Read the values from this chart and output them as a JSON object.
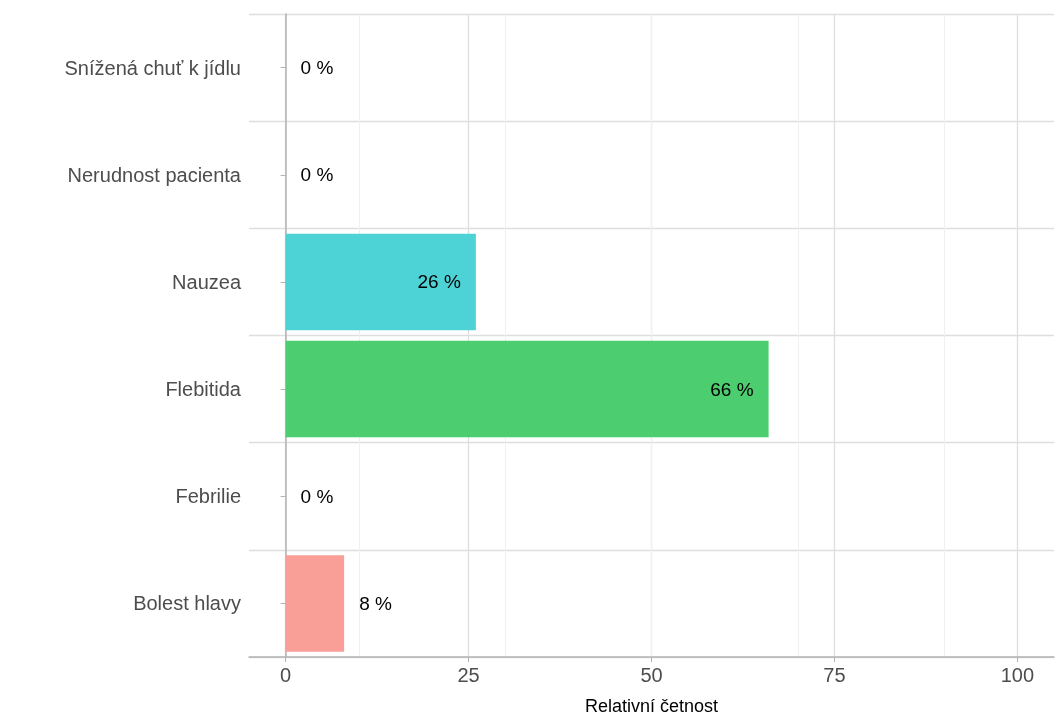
{
  "chart_data": {
    "type": "bar",
    "orientation": "horizontal",
    "xlabel": "Relativní četnost",
    "categories": [
      "Snížená chuť k jídlu",
      "Nerudnost pacienta",
      "Nauzea",
      "Flebitida",
      "Febrilie",
      "Bolest hlavy"
    ],
    "values": [
      0,
      0,
      26,
      66,
      0,
      8
    ],
    "colors": [
      "#f89bee",
      "#a0c3ff",
      "#4dd2d6",
      "#4ccd6f",
      "#cfbf66",
      "#f99f98"
    ],
    "value_labels": [
      "0 %",
      "0 %",
      "26 %",
      "66 %",
      "0 %",
      "8 %"
    ],
    "xlim": [
      -5,
      105
    ],
    "xticks": [
      0,
      25,
      50,
      75,
      100
    ],
    "grid": true
  }
}
